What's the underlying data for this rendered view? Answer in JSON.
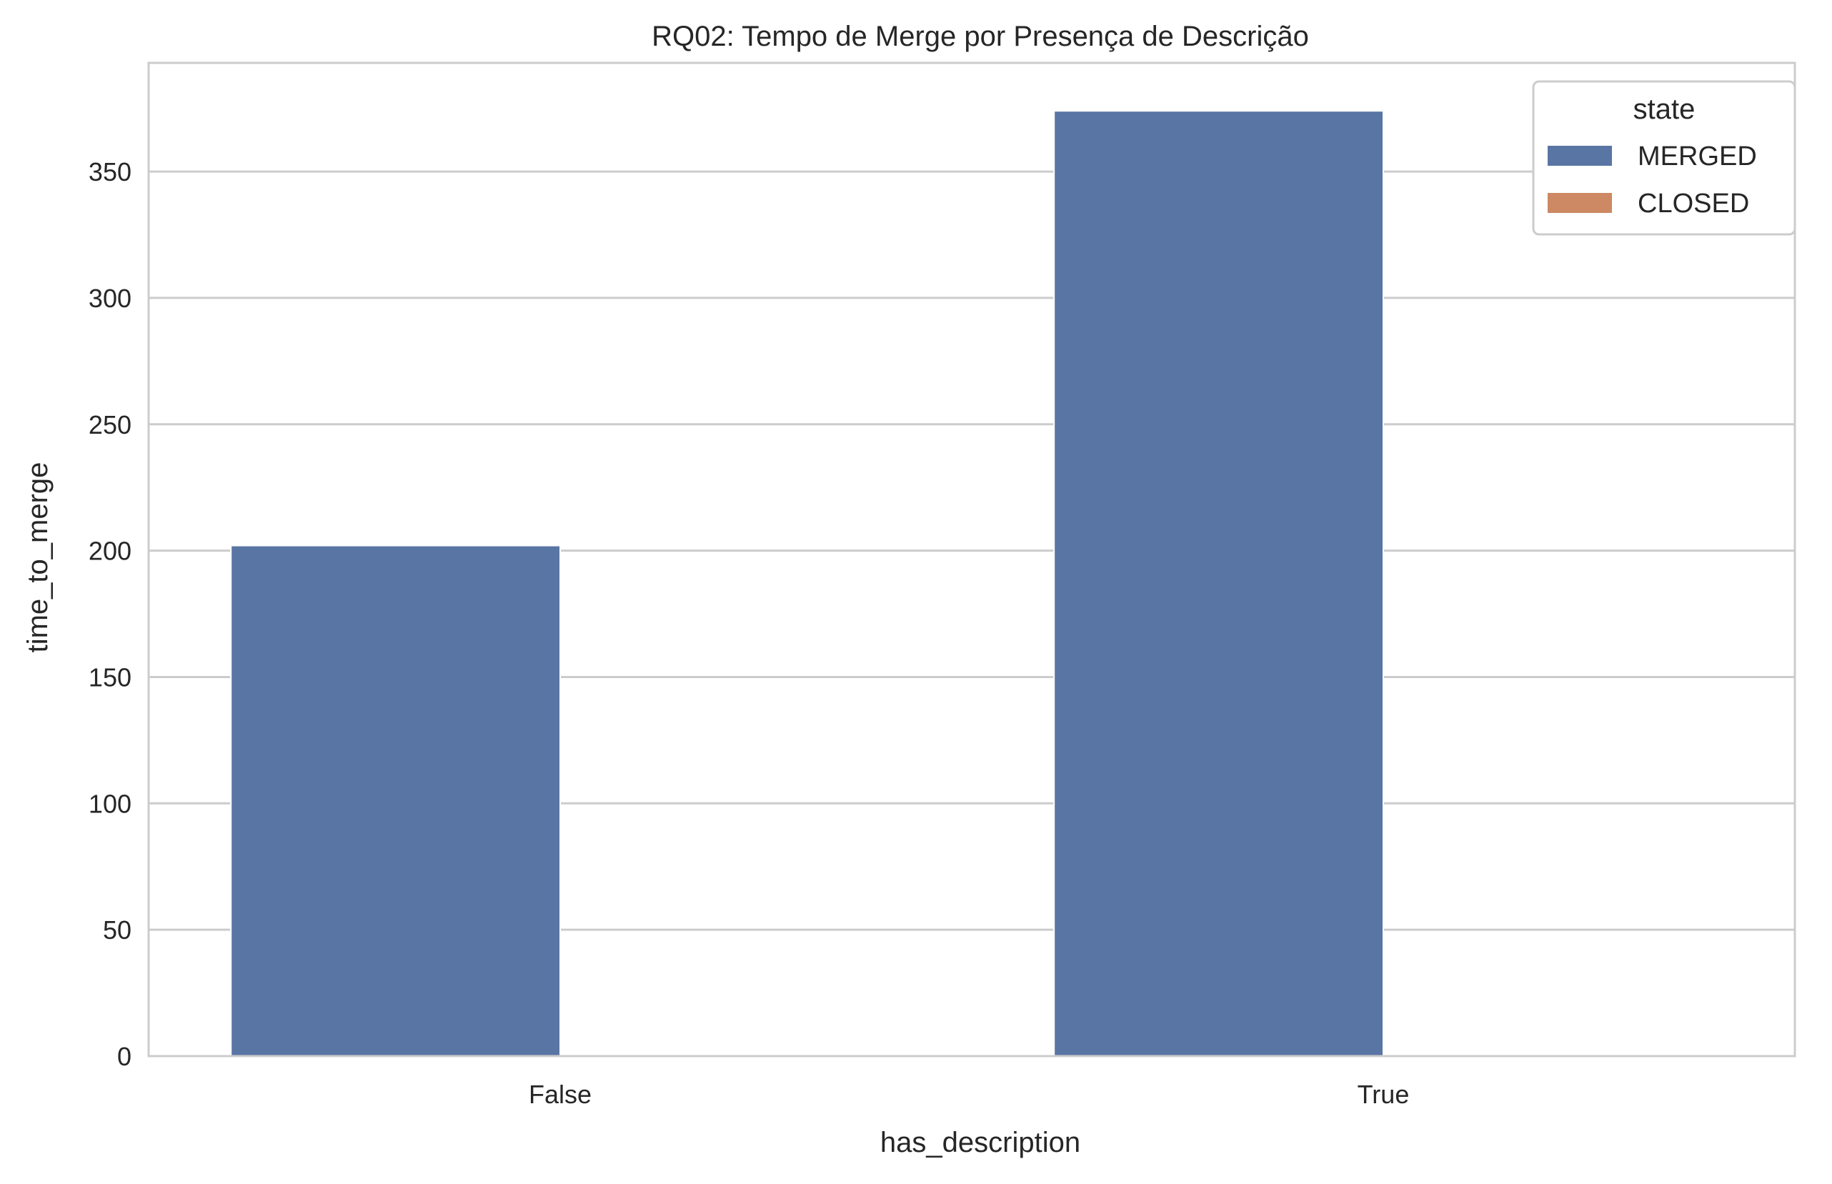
{
  "chart_data": {
    "type": "bar",
    "title": "RQ02: Tempo de Merge por Presença de Descrição",
    "xlabel": "has_description",
    "ylabel": "time_to_merge",
    "categories": [
      "False",
      "True"
    ],
    "series": [
      {
        "name": "MERGED",
        "color": "#5975a4",
        "values": [
          202,
          374
        ]
      },
      {
        "name": "CLOSED",
        "color": "#cc8963",
        "values": [
          null,
          null
        ]
      }
    ],
    "ylim": [
      0,
      393
    ],
    "yticks": [
      0,
      50,
      100,
      150,
      200,
      250,
      300,
      350
    ],
    "grid": "horizontal",
    "legend": {
      "title": "state",
      "placement": "top-right"
    }
  }
}
